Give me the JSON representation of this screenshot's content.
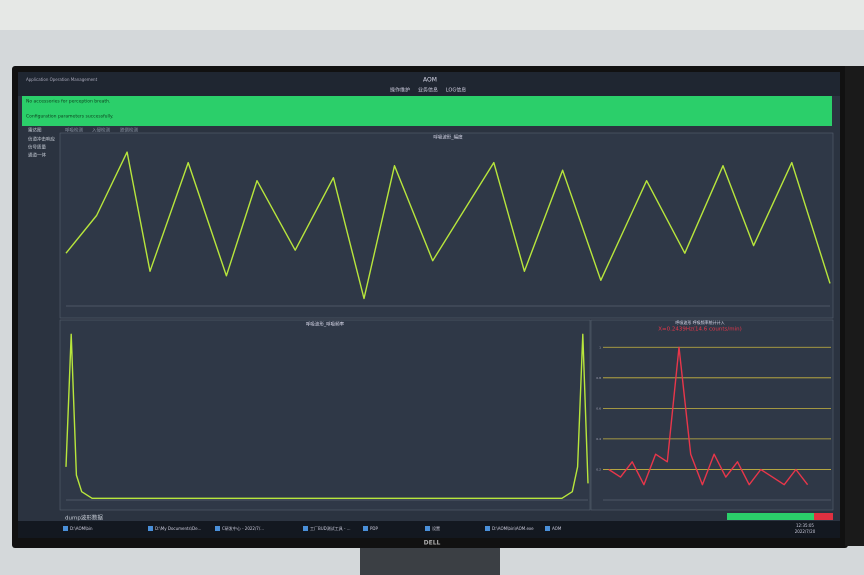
{
  "window": {
    "title": "AOM",
    "app_name": "Application Operation Management",
    "menu": [
      "操作维护",
      "业务信息",
      "LOG信息"
    ]
  },
  "status": {
    "line1": "No accessories for perception breath.",
    "line2": "Configuration parameters successfully."
  },
  "sidebar": [
    "雷达图",
    "信道冲击响应",
    "信号质量",
    "通道一体"
  ],
  "tabs": [
    "呼吸检测",
    "入侵检测",
    "跌倒检测"
  ],
  "dump_button": "dump波形数据",
  "taskbar": [
    "D:\\AOM\\bin",
    "D:\\My Documents\\De...",
    "C研发中心 - 2022/7/...",
    "工厂BUD测试工具 - ...",
    "PDP",
    "设置",
    "D:\\AOM\\bin\\AOM.exe",
    "AOM"
  ],
  "clock": {
    "time": "12:35:05",
    "date": "2022/7/20"
  },
  "chart_data": [
    {
      "type": "line",
      "title": "呼吸波形_幅度",
      "color": "#b8e63c",
      "x": [
        0,
        4,
        8,
        11,
        16,
        21,
        25,
        30,
        35,
        39,
        43,
        48,
        56,
        60,
        65,
        70,
        76,
        81,
        86,
        90,
        95,
        100
      ],
      "values": [
        0.3,
        0.55,
        0.97,
        0.18,
        0.9,
        0.15,
        0.78,
        0.32,
        0.8,
        0.0,
        0.88,
        0.25,
        0.9,
        0.18,
        0.85,
        0.12,
        0.78,
        0.3,
        0.88,
        0.35,
        0.9,
        0.1
      ],
      "xlim": [
        0,
        100
      ],
      "ylim": [
        -0.05,
        1.05
      ]
    },
    {
      "type": "line",
      "title": "呼吸波形_呼吸频率",
      "color": "#b8e63c",
      "x": [
        0,
        1,
        2,
        3,
        5,
        50,
        95,
        97,
        98,
        99,
        100
      ],
      "values": [
        0.2,
        1.0,
        0.15,
        0.05,
        0.01,
        0.01,
        0.01,
        0.05,
        0.2,
        1.0,
        0.1
      ],
      "xlim": [
        0,
        100
      ],
      "ylim": [
        0,
        1.05
      ]
    },
    {
      "type": "line",
      "title": "呼吸波形 呼吸频率统计计入",
      "annotation": "X=0.2439Hz(14.6 counts/min)",
      "color": "#e8364a",
      "x": [
        0,
        1,
        2,
        3,
        4,
        5,
        6,
        7,
        8,
        9,
        10,
        11,
        12,
        13,
        14,
        15,
        16,
        17
      ],
      "values": [
        0.2,
        0.15,
        0.25,
        0.1,
        0.3,
        0.25,
        1.0,
        0.3,
        0.1,
        0.3,
        0.15,
        0.25,
        0.1,
        0.2,
        0.15,
        0.1,
        0.2,
        0.1
      ],
      "xlim": [
        -0.5,
        19
      ],
      "ylim": [
        0,
        1.1
      ],
      "yticks": [
        0.2,
        0.4,
        0.6,
        0.8,
        1.0
      ],
      "grid_color": "#c9b640"
    }
  ]
}
